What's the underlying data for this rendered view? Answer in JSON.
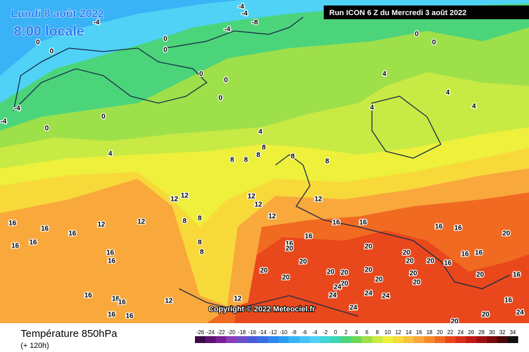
{
  "header": {
    "valid_time": "Lundi 8 août 2022",
    "local_time": "8:00 locale",
    "run": "Run ICON 6 Z du Mercredi 3 août 2022"
  },
  "footer": {
    "title": "Température 850hPa",
    "lead": "(+ 120h)",
    "copyright": "Copyright © 2022 Meteociel.fr"
  },
  "legend": {
    "values": [
      -26,
      -24,
      -22,
      -20,
      -18,
      -16,
      -14,
      -12,
      -10,
      -8,
      -6,
      -4,
      -2,
      0,
      2,
      4,
      6,
      8,
      10,
      12,
      14,
      16,
      18,
      20,
      22,
      24,
      26,
      28,
      30,
      32,
      34
    ],
    "colors": [
      "#3d0a4a",
      "#5a1470",
      "#7a2096",
      "#8c3cb4",
      "#6a50c8",
      "#4a5ad8",
      "#3a6ee6",
      "#2e86ee",
      "#2a9cf2",
      "#3ab2f6",
      "#46c4f8",
      "#4fd2f6",
      "#3fd6d8",
      "#3fd6b0",
      "#4cd47a",
      "#6cd858",
      "#9ee04a",
      "#c8ea44",
      "#eef03c",
      "#f7d93a",
      "#f9c23e",
      "#f9a83c",
      "#f58a2c",
      "#f06a22",
      "#e8481c",
      "#d83018",
      "#c01a14",
      "#a01010",
      "#7a0a0a",
      "#4a0606",
      "#101010"
    ]
  },
  "contour_labels": [
    -4,
    -4,
    -4,
    -8,
    -4,
    -4,
    -4,
    0,
    0,
    0,
    0,
    0,
    0,
    0,
    0,
    0,
    0,
    0,
    4,
    4,
    4,
    4,
    4,
    4,
    8,
    8,
    8,
    8,
    8,
    8,
    8,
    8,
    8,
    8,
    12,
    12,
    12,
    12,
    12,
    12,
    12,
    12,
    12,
    12,
    16,
    16,
    16,
    16,
    16,
    16,
    16,
    16,
    16,
    16,
    16,
    16,
    16,
    16,
    16,
    16,
    16,
    16,
    16,
    16,
    16,
    16,
    16,
    20,
    20,
    20,
    20,
    20,
    20,
    20,
    20,
    20,
    20,
    20,
    20,
    20,
    20,
    20,
    20,
    20,
    20,
    20,
    24,
    24,
    24,
    24,
    24,
    24
  ]
}
